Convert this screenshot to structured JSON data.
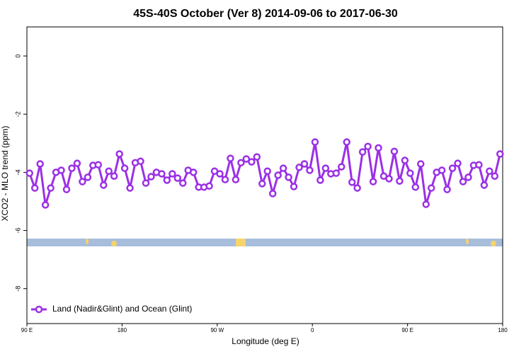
{
  "chart_data": {
    "type": "line",
    "title": "45S-40S October (Ver 8)   2014-09-06 to 2017-06-30",
    "xlabel": "Longitude (deg E)",
    "ylabel": "XCO2 - MLO trend (ppm)",
    "x": [
      92.5,
      97.5,
      102.5,
      107.5,
      112.5,
      117.5,
      122.5,
      127.5,
      132.5,
      137.5,
      142.5,
      147.5,
      152.5,
      157.5,
      162.5,
      167.5,
      172.5,
      177.5,
      182.5,
      187.5,
      192.5,
      197.5,
      202.5,
      207.5,
      212.5,
      217.5,
      222.5,
      227.5,
      232.5,
      237.5,
      242.5,
      247.5,
      252.5,
      257.5,
      262.5,
      267.5,
      272.5,
      277.5,
      282.5,
      287.5,
      292.5,
      297.5,
      302.5,
      307.5,
      312.5,
      317.5,
      322.5,
      327.5,
      332.5,
      337.5,
      342.5,
      347.5,
      352.5,
      357.5,
      362.5,
      367.5,
      372.5,
      377.5,
      382.5,
      387.5,
      392.5,
      397.5,
      402.5,
      407.5,
      412.5,
      417.5,
      422.5,
      427.5,
      432.5,
      437.5,
      442.5,
      447.5,
      452.5,
      457.5,
      462.5,
      467.5,
      472.5,
      477.5,
      482.5,
      487.5,
      492.5,
      497.5,
      502.5,
      507.5,
      512.5,
      517.5,
      522.5,
      527.5,
      532.5,
      537.5
    ],
    "series": [
      {
        "name": "Land (Nadir&Glint) and Ocean (Glint)",
        "color": "#9b30e6",
        "values": [
          -4.03,
          -4.54,
          -3.71,
          -5.12,
          -4.54,
          -4.0,
          -3.93,
          -4.59,
          -3.86,
          -3.69,
          -4.32,
          -4.17,
          -3.76,
          -3.74,
          -4.44,
          -3.96,
          -4.13,
          -3.37,
          -3.86,
          -4.54,
          -3.67,
          -3.62,
          -4.37,
          -4.15,
          -4.0,
          -4.05,
          -4.27,
          -4.05,
          -4.2,
          -4.37,
          -3.93,
          -4.0,
          -4.51,
          -4.51,
          -4.47,
          -3.96,
          -4.05,
          -4.25,
          -3.52,
          -4.25,
          -3.67,
          -3.54,
          -3.64,
          -3.47,
          -4.39,
          -3.96,
          -4.73,
          -4.1,
          -3.86,
          -4.17,
          -4.49,
          -3.83,
          -3.71,
          -3.93,
          -2.96,
          -4.27,
          -3.86,
          -4.05,
          -4.03,
          -3.81,
          -2.96,
          -4.34,
          -4.54,
          -3.3,
          -3.11,
          -4.32,
          -3.16,
          -4.13,
          -4.22,
          -3.28,
          -4.3,
          -3.59,
          -4.03,
          -4.51,
          -3.71,
          -5.1,
          -4.54,
          -4.0,
          -3.93,
          -4.59,
          -3.86,
          -3.69,
          -4.32,
          -4.17,
          -3.76,
          -3.74,
          -4.44,
          -3.96,
          -4.13,
          -3.37
        ]
      }
    ],
    "xlim": [
      90,
      540
    ],
    "xticks": [
      {
        "value": 90,
        "label": "90 E"
      },
      180,
      {
        "value": 270,
        "label": "90 W"
      },
      {
        "value": 360,
        "label": "0"
      },
      {
        "value": 450,
        "label": "90 E"
      },
      {
        "value": 540,
        "label": "180"
      }
    ],
    "ylim": [
      -9.2,
      1
    ],
    "yticks": [
      0,
      -2,
      -4,
      -6,
      -8
    ],
    "legend": "bottom-left"
  }
}
